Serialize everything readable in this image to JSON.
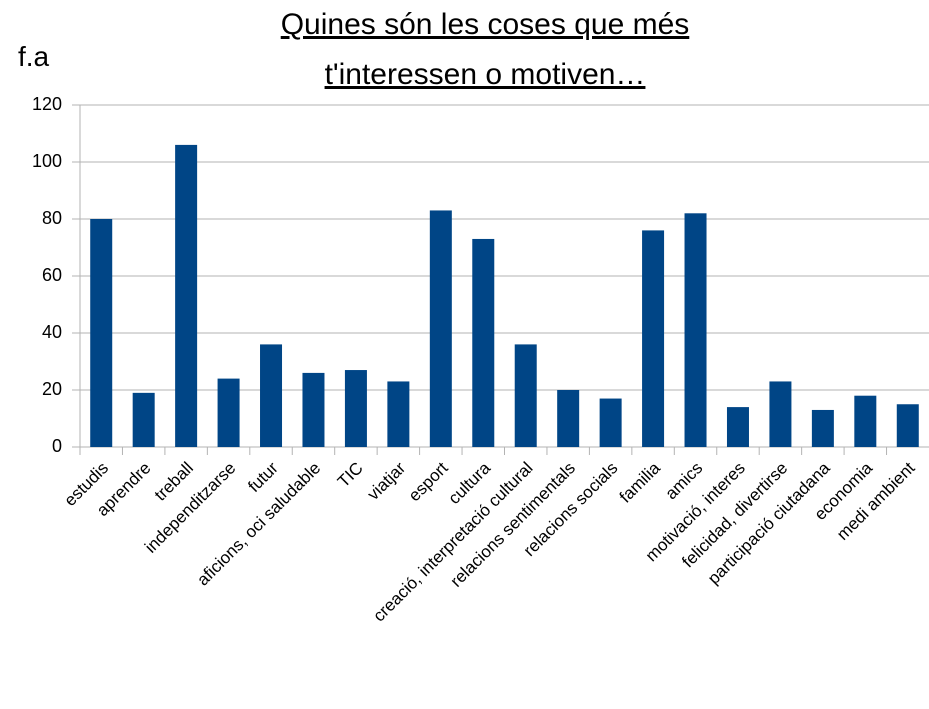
{
  "chart_data": {
    "type": "bar",
    "title": [
      "Quines són les coses que més",
      "t'interessen o motiven…"
    ],
    "y_label": "f.a",
    "categories": [
      "estudis",
      "aprendre",
      "treball",
      "independitzarse",
      "futur",
      "aficions, oci saludable",
      "TIC",
      "viatjar",
      "esport",
      "cultura",
      "creació, interpretació cultural",
      "relacions sentimentals",
      "relacions socials",
      "familia",
      "amics",
      "motivació, interes",
      "felicidad, divertirse",
      "participació ciutadana",
      "economia",
      "medi ambient"
    ],
    "values": [
      80,
      19,
      106,
      24,
      36,
      26,
      27,
      23,
      83,
      73,
      36,
      20,
      17,
      76,
      82,
      14,
      23,
      13,
      18,
      15
    ],
    "color": "#004586",
    "ylim": [
      0,
      120
    ],
    "yticks": [
      0,
      20,
      40,
      60,
      80,
      100,
      120
    ],
    "grid": true
  }
}
